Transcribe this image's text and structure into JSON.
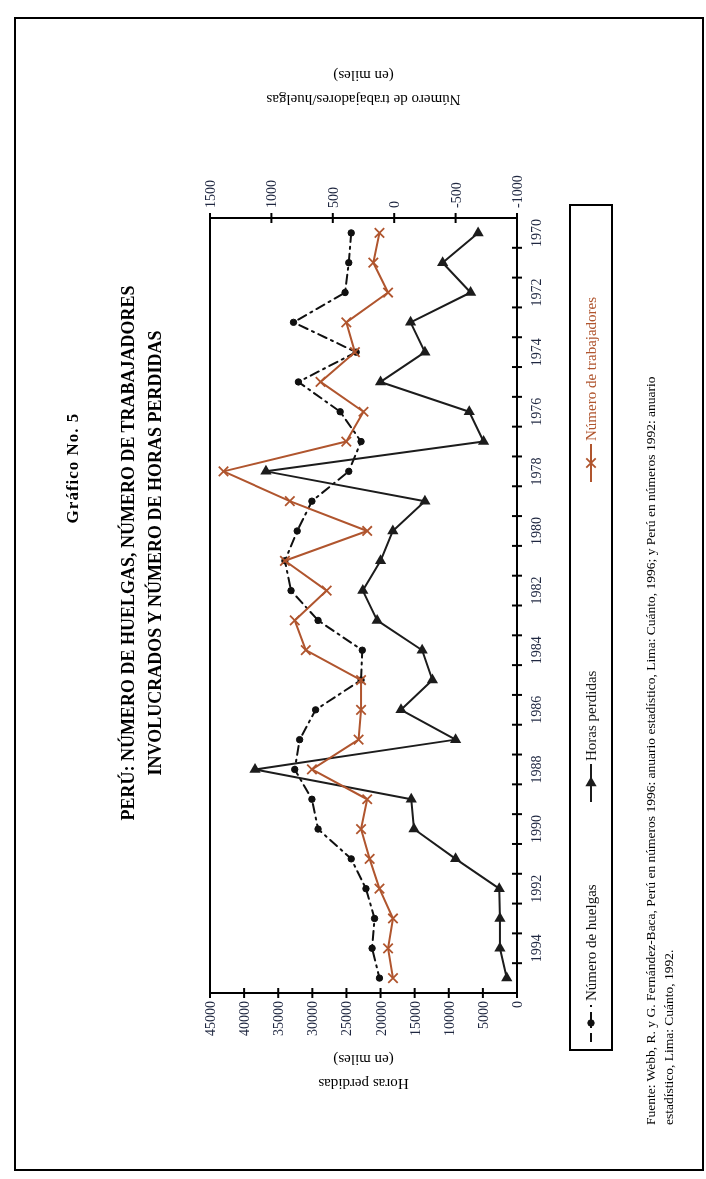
{
  "chart_data": {
    "type": "line",
    "orientation": "horizontal",
    "title": "Gráfico No. 5",
    "subtitle": "PERÚ: NÚMERO DE HUELGAS, NÚMERO DE TRABAJADORES INVOLUCRADOS Y NÚMERO DE HORAS PERDIDAS",
    "xlabel": "Horas perdidas (en miles)",
    "x2label": "Número de trabajadores/huelgas (en miles)",
    "categories": [
      "1970",
      null,
      "1972",
      null,
      "1974",
      null,
      "1976",
      null,
      "1978",
      null,
      "1980",
      null,
      "1982",
      null,
      "1984",
      null,
      "1986",
      null,
      "1988",
      null,
      "1990",
      null,
      "1992",
      null,
      "1994",
      null
    ],
    "xlim": [
      45000,
      0
    ],
    "xticks": [
      45000,
      40000,
      35000,
      30000,
      25000,
      20000,
      15000,
      10000,
      5000,
      0
    ],
    "x2lim": [
      1500,
      -1000
    ],
    "x2ticks": [
      1500,
      1000,
      500,
      0,
      -500,
      -1000
    ],
    "legend": "right",
    "annotations": [
      "Fuente: Webb, R. y G. Fernández-Baca, Perú en números 1996: anuario estadístico, Lima: Cuánto, 1996; y Perú en números 1992: anuario estadístico, Lima: Cuánto, 1992."
    ],
    "series": [
      {
        "name": "Número de huelgas",
        "color": "#101010",
        "axis": "x2",
        "marker": "circle",
        "line_style": "dashed",
        "values": [
          350,
          370,
          400,
          820,
          310,
          780,
          440,
          270,
          370,
          670,
          790,
          890,
          840,
          620,
          260,
          270,
          640,
          770,
          810,
          670,
          620,
          350,
          230,
          160,
          180,
          120
        ]
      },
      {
        "name": "Horas perdidas",
        "color": "#1c1c1c",
        "marker": "triangle",
        "line_style": "solid",
        "values": [
          5700,
          10900,
          6800,
          15600,
          13500,
          20000,
          7000,
          4900,
          36800,
          13500,
          18200,
          20000,
          22600,
          20500,
          13900,
          12400,
          17000,
          9000,
          38400,
          15500,
          15100,
          9000,
          2600,
          2500,
          2500,
          1500
        ]
      },
      {
        "name": "Número de trabajadores",
        "color": "#b0552e",
        "axis": "x2",
        "marker": "cross",
        "line_style": "solid",
        "values": [
          120,
          170,
          50,
          390,
          320,
          600,
          250,
          390,
          1390,
          850,
          220,
          890,
          550,
          810,
          720,
          270,
          270,
          290,
          670,
          220,
          270,
          200,
          120,
          10,
          50,
          10
        ]
      }
    ]
  }
}
